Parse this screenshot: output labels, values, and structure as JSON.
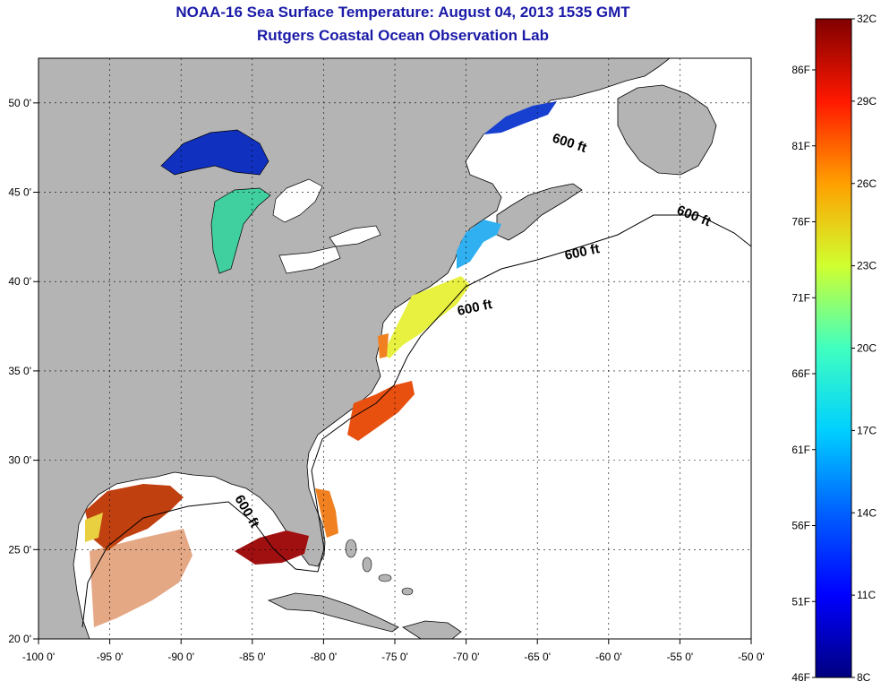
{
  "title": "NOAA-16 Sea Surface Temperature:  August 04, 2013 1535 GMT",
  "subtitle": "Rutgers Coastal Ocean Observation Lab",
  "map": {
    "lon_range": [
      -100,
      -50
    ],
    "lat_range": [
      20,
      52.5
    ],
    "x_ticks": [
      "-100 0'",
      "-95 0'",
      "-90 0'",
      "-85 0'",
      "-80 0'",
      "-75 0'",
      "-70 0'",
      "-65 0'",
      "-60 0'",
      "-55 0'",
      "-50 0'"
    ],
    "y_ticks": [
      "20 0'",
      "25 0'",
      "30 0'",
      "35 0'",
      "40 0'",
      "45 0'",
      "50 0'"
    ],
    "contour_labels": [
      "600 ft",
      "600 ft",
      "600 ft",
      "600 ft",
      "600 ft"
    ]
  },
  "colorbar": {
    "celsius": [
      "32C",
      "29C",
      "26C",
      "23C",
      "20C",
      "17C",
      "14C",
      "11C",
      "8C"
    ],
    "fahrenheit": [
      "86F",
      "81F",
      "76F",
      "71F",
      "66F",
      "61F",
      "56F",
      "51F",
      "46F"
    ],
    "colors": [
      "#800000",
      "#ff0000",
      "#ff8000",
      "#ffff00",
      "#80ff80",
      "#00ffff",
      "#0080ff",
      "#0000ff",
      "#000080"
    ]
  },
  "colors": {
    "land": "#b4b4b4",
    "title": "#1a1aa8"
  }
}
